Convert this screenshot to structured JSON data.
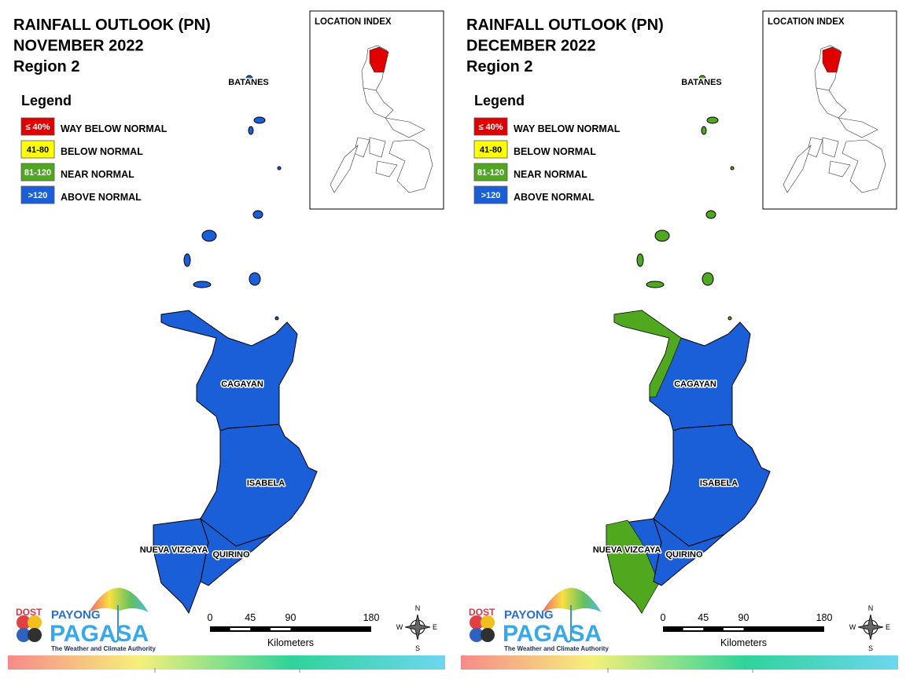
{
  "panels": [
    {
      "title": [
        "RAINFALL OUTLOOK (PN)",
        "NOVEMBER 2022",
        "Region 2"
      ],
      "legend_title": "Legend",
      "legend": [
        {
          "swatch": "≤ 40%",
          "label": "WAY BELOW NORMAL",
          "color": "#e00000"
        },
        {
          "swatch": "41-80",
          "label": "BELOW NORMAL",
          "color": "#ffff00"
        },
        {
          "swatch": "81-120",
          "label": "NEAR NORMAL",
          "color": "#4fa81e"
        },
        {
          "swatch": ">120",
          "label": "ABOVE NORMAL",
          "color": "#1a5fd8"
        }
      ],
      "index_title": "LOCATION INDEX",
      "provinces": [
        {
          "name": "BATANES",
          "fill": "#1a5fd8"
        },
        {
          "name": "CAGAYAN",
          "fill": "#1a5fd8"
        },
        {
          "name": "ISABELA",
          "fill": "#1a5fd8"
        },
        {
          "name": "NUEVA VIZCAYA",
          "fill": "#1a5fd8"
        },
        {
          "name": "QUIRINO",
          "fill": "#1a5fd8"
        }
      ],
      "scale": {
        "ticks": [
          0,
          45,
          90,
          180
        ],
        "unit": "Kilometers"
      },
      "compass": {
        "n": "N",
        "e": "E",
        "s": "S",
        "w": "W"
      },
      "logo": {
        "agency": "DOST",
        "top": "PAYONG",
        "main": "PAGASA",
        "tagline": "The Weather and Climate Authority"
      }
    },
    {
      "title": [
        "RAINFALL OUTLOOK (PN)",
        "DECEMBER 2022",
        "Region 2"
      ],
      "legend_title": "Legend",
      "legend": [
        {
          "swatch": "≤ 40%",
          "label": "WAY BELOW NORMAL",
          "color": "#e00000"
        },
        {
          "swatch": "41-80",
          "label": "BELOW NORMAL",
          "color": "#ffff00"
        },
        {
          "swatch": "81-120",
          "label": "NEAR NORMAL",
          "color": "#4fa81e"
        },
        {
          "swatch": ">120",
          "label": "ABOVE NORMAL",
          "color": "#1a5fd8"
        }
      ],
      "index_title": "LOCATION INDEX",
      "provinces": [
        {
          "name": "BATANES",
          "fill": "#4fa81e"
        },
        {
          "name": "CAGAYAN",
          "fill": "#1a5fd8",
          "overlay": "#4fa81e"
        },
        {
          "name": "ISABELA",
          "fill": "#1a5fd8"
        },
        {
          "name": "NUEVA VIZCAYA",
          "fill": "#1a5fd8",
          "overlay": "#4fa81e"
        },
        {
          "name": "QUIRINO",
          "fill": "#1a5fd8"
        }
      ],
      "scale": {
        "ticks": [
          0,
          45,
          90,
          180
        ],
        "unit": "Kilometers"
      },
      "compass": {
        "n": "N",
        "e": "E",
        "s": "S",
        "w": "W"
      },
      "logo": {
        "agency": "DOST",
        "top": "PAYONG",
        "main": "PAGASA",
        "tagline": "The Weather and Climate Authority"
      }
    }
  ]
}
